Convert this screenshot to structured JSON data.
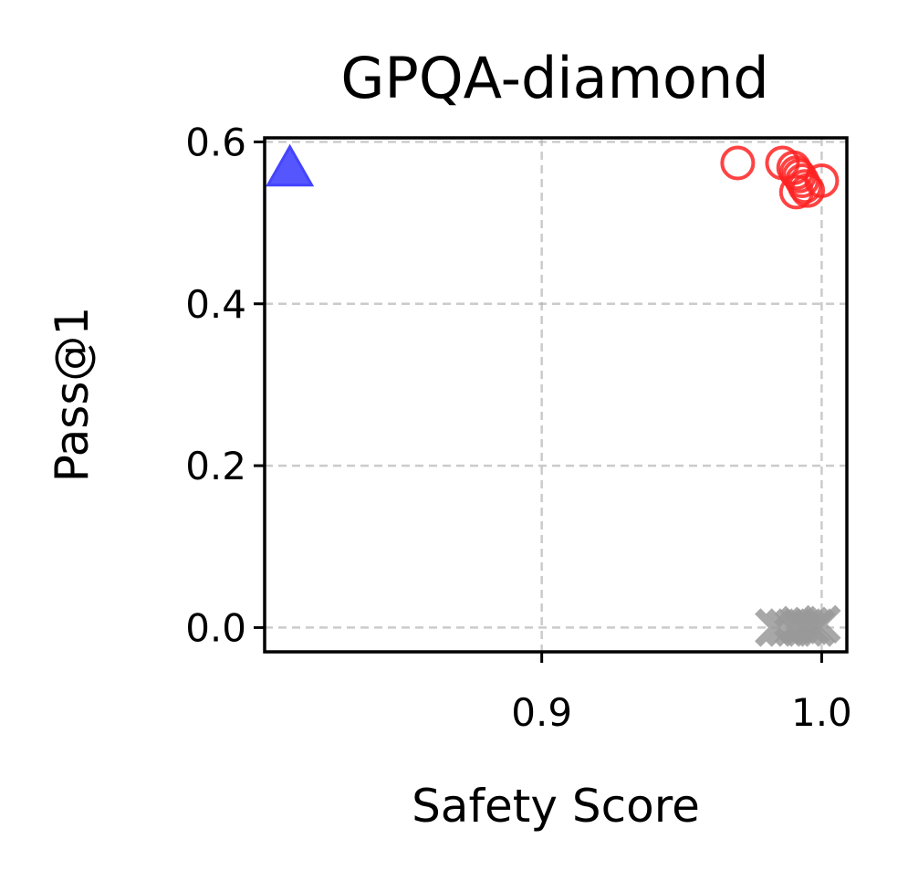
{
  "chart_data": {
    "type": "scatter",
    "title": "GPQA-diamond",
    "xlabel": "Safety Score",
    "ylabel": "Pass@1",
    "xlim": [
      0.801,
      1.009
    ],
    "ylim": [
      -0.03,
      0.605
    ],
    "xticks": [
      0.9,
      1.0
    ],
    "xtick_labels": [
      "0.9",
      "1.0"
    ],
    "yticks": [
      0.0,
      0.2,
      0.4,
      0.6
    ],
    "ytick_labels": [
      "0.0",
      "0.2",
      "0.4",
      "0.6"
    ],
    "grid": true,
    "series": [
      {
        "marker": "triangle",
        "color": "#4444ff",
        "points": [
          [
            0.81,
            0.567
          ]
        ]
      },
      {
        "marker": "circle-open",
        "color": "#ff2222",
        "points": [
          [
            0.97,
            0.574
          ],
          [
            0.986,
            0.574
          ],
          [
            0.99,
            0.568
          ],
          [
            0.991,
            0.562
          ],
          [
            0.992,
            0.558
          ],
          [
            0.993,
            0.552
          ],
          [
            0.994,
            0.545
          ],
          [
            0.995,
            0.54
          ],
          [
            0.991,
            0.538
          ],
          [
            1.0,
            0.552
          ]
        ]
      },
      {
        "marker": "x",
        "color": "#999999",
        "points": [
          [
            0.983,
            0.0
          ],
          [
            0.987,
            0.0
          ],
          [
            0.99,
            0.0
          ],
          [
            0.992,
            0.003
          ],
          [
            0.994,
            0.0
          ],
          [
            0.996,
            0.002
          ],
          [
            0.998,
            0.0
          ],
          [
            1.0,
            0.004
          ]
        ]
      }
    ]
  }
}
